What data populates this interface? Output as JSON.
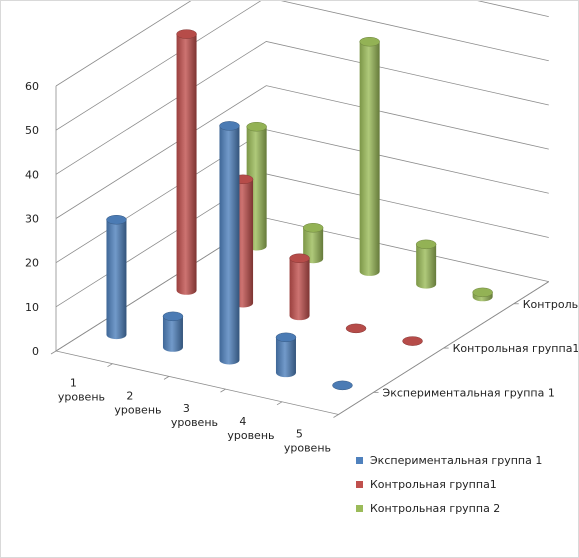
{
  "chart_data": {
    "type": "bar",
    "style": "3d-cylinder",
    "categories": [
      "1 уровень",
      "2 уровень",
      "3 уровень",
      "4 уровень",
      "5 уровень"
    ],
    "series": [
      {
        "name": "Экспериментальная группа 1",
        "color": "#4f81bd",
        "values": [
          26,
          7,
          53,
          8,
          0
        ]
      },
      {
        "name": "Контрольная группа1",
        "color": "#c0504d",
        "values": [
          58,
          28,
          13,
          0,
          0
        ]
      },
      {
        "name": "Контрольная группа 2",
        "color": "#9bbb59",
        "values": [
          27,
          7,
          52,
          9,
          1
        ]
      }
    ],
    "ylim": [
      0,
      60
    ],
    "yticks": [
      "0",
      "10",
      "20",
      "30",
      "40",
      "50",
      "60"
    ],
    "grid": true,
    "legend": "bottom-right"
  }
}
